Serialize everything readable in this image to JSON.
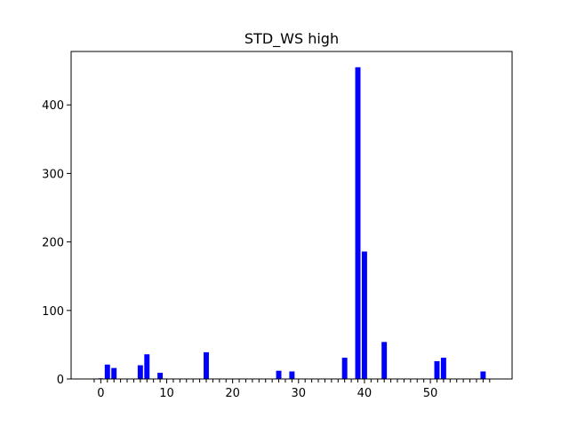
{
  "chart_data": {
    "type": "bar",
    "title": "STD_WS high",
    "xlabel": "",
    "ylabel": "",
    "bar_color": "#0000ff",
    "grid": false,
    "legend": "none",
    "xlim": [
      -4.5,
      62.4
    ],
    "ylim": [
      0,
      478
    ],
    "x_major_ticks": [
      0,
      10,
      20,
      30,
      40,
      50
    ],
    "x_minor_ticks_range": [
      -1,
      59
    ],
    "y_ticks": [
      0,
      100,
      200,
      300,
      400
    ],
    "x": [
      0,
      1,
      2,
      3,
      4,
      5,
      6,
      7,
      8,
      9,
      10,
      11,
      12,
      13,
      14,
      15,
      16,
      17,
      18,
      19,
      20,
      21,
      22,
      23,
      24,
      25,
      26,
      27,
      28,
      29,
      30,
      31,
      32,
      33,
      34,
      35,
      36,
      37,
      38,
      39,
      40,
      41,
      42,
      43,
      44,
      45,
      46,
      47,
      48,
      49,
      50,
      51,
      52,
      53,
      54,
      55,
      56,
      57,
      58,
      59
    ],
    "values": [
      1,
      21,
      16,
      0,
      0,
      0,
      20,
      36,
      0,
      9,
      0,
      0,
      0,
      0,
      0,
      0,
      39,
      0,
      0,
      0,
      0,
      0,
      0,
      0,
      0,
      0,
      0,
      12,
      0,
      11,
      0,
      0,
      0,
      0,
      0,
      0,
      0,
      31,
      0,
      455,
      186,
      0,
      0,
      54,
      0,
      0,
      0,
      0,
      0,
      0,
      0,
      26,
      31,
      0,
      0,
      0,
      0,
      0,
      11,
      0
    ]
  }
}
